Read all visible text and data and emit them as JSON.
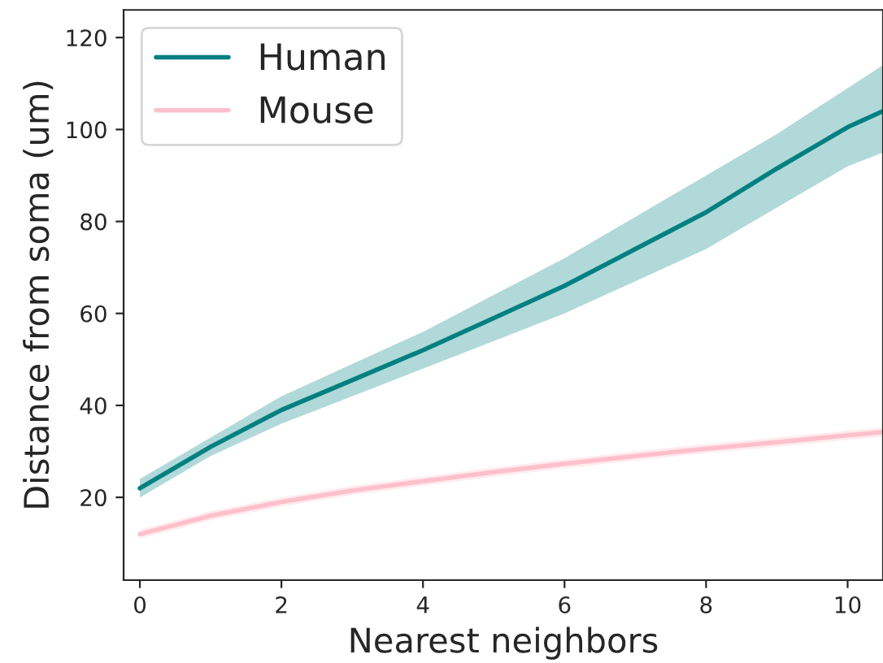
{
  "chart_data": {
    "type": "line",
    "xlabel": "Nearest neighbors",
    "ylabel": "Distance from soma (um)",
    "x": [
      0,
      1,
      2,
      3,
      4,
      5,
      6,
      7,
      8,
      9,
      10,
      10.5
    ],
    "series": [
      {
        "name": "Human",
        "color": "#008080",
        "values": [
          22,
          31,
          39,
          45.5,
          52,
          59,
          66,
          74,
          82,
          91.5,
          100.5,
          104
        ],
        "lower": [
          20,
          29,
          36,
          42,
          48,
          54,
          60,
          67,
          74,
          83,
          92,
          95
        ],
        "upper": [
          24,
          33,
          42,
          49,
          56,
          64,
          72,
          81,
          90,
          99,
          109,
          114
        ]
      },
      {
        "name": "Mouse",
        "color": "#ffc0cb",
        "values": [
          12,
          16,
          19,
          21.5,
          23.5,
          25.5,
          27.3,
          29,
          30.6,
          32,
          33.5,
          34.2
        ],
        "lower": [
          11,
          15,
          18,
          20.5,
          22.5,
          24.5,
          26.3,
          28,
          29.6,
          31,
          32.5,
          33.2
        ],
        "upper": [
          13,
          17,
          20,
          22.5,
          24.5,
          26.5,
          28.3,
          30,
          31.6,
          33,
          34.5,
          35.2
        ]
      }
    ],
    "xlim": [
      -0.23,
      10.5
    ],
    "ylim": [
      2,
      126
    ],
    "xticks": [
      0,
      2,
      4,
      6,
      8,
      10
    ],
    "yticks": [
      20,
      40,
      60,
      80,
      100,
      120
    ],
    "grid": false,
    "legend": "top left",
    "marker": "none",
    "line_style": "solid"
  }
}
